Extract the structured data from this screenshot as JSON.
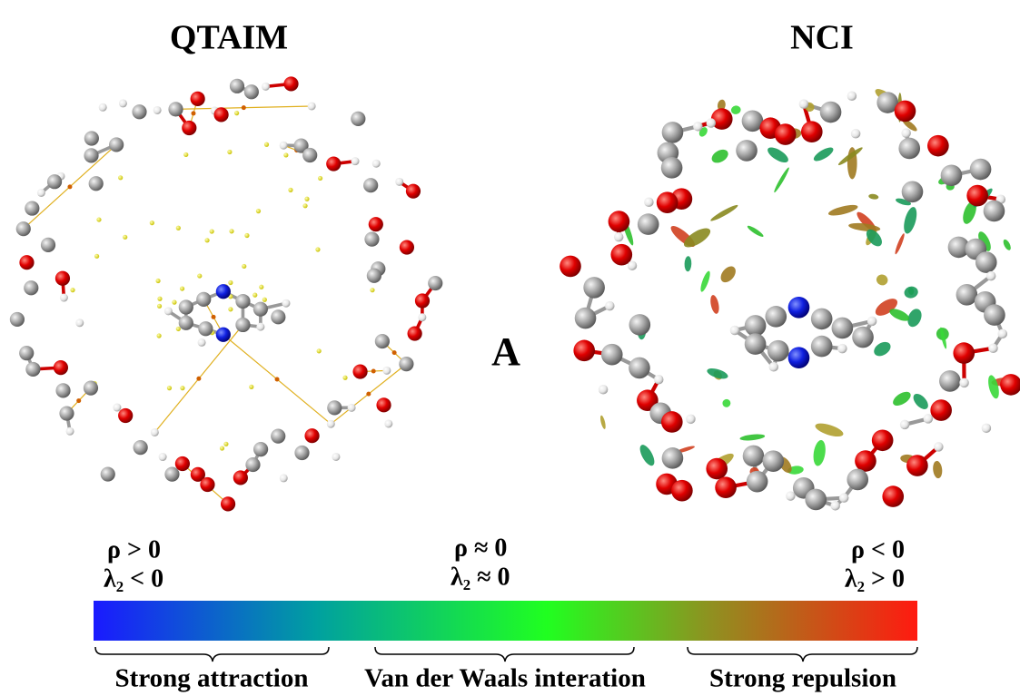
{
  "header": {
    "left_title": "QTAIM",
    "right_title": "NCI"
  },
  "panel_label": "A",
  "scale": {
    "left": {
      "rho": "ρ > 0",
      "lambda": "λ₂ < 0"
    },
    "middle": {
      "rho": "ρ ≈ 0",
      "lambda": "λ₂ ≈ 0"
    },
    "right": {
      "rho": "ρ < 0",
      "lambda": "λ₂ > 0"
    }
  },
  "regions": [
    "Strong attraction",
    "Van der Waals interation",
    "Strong repulsion"
  ]
}
